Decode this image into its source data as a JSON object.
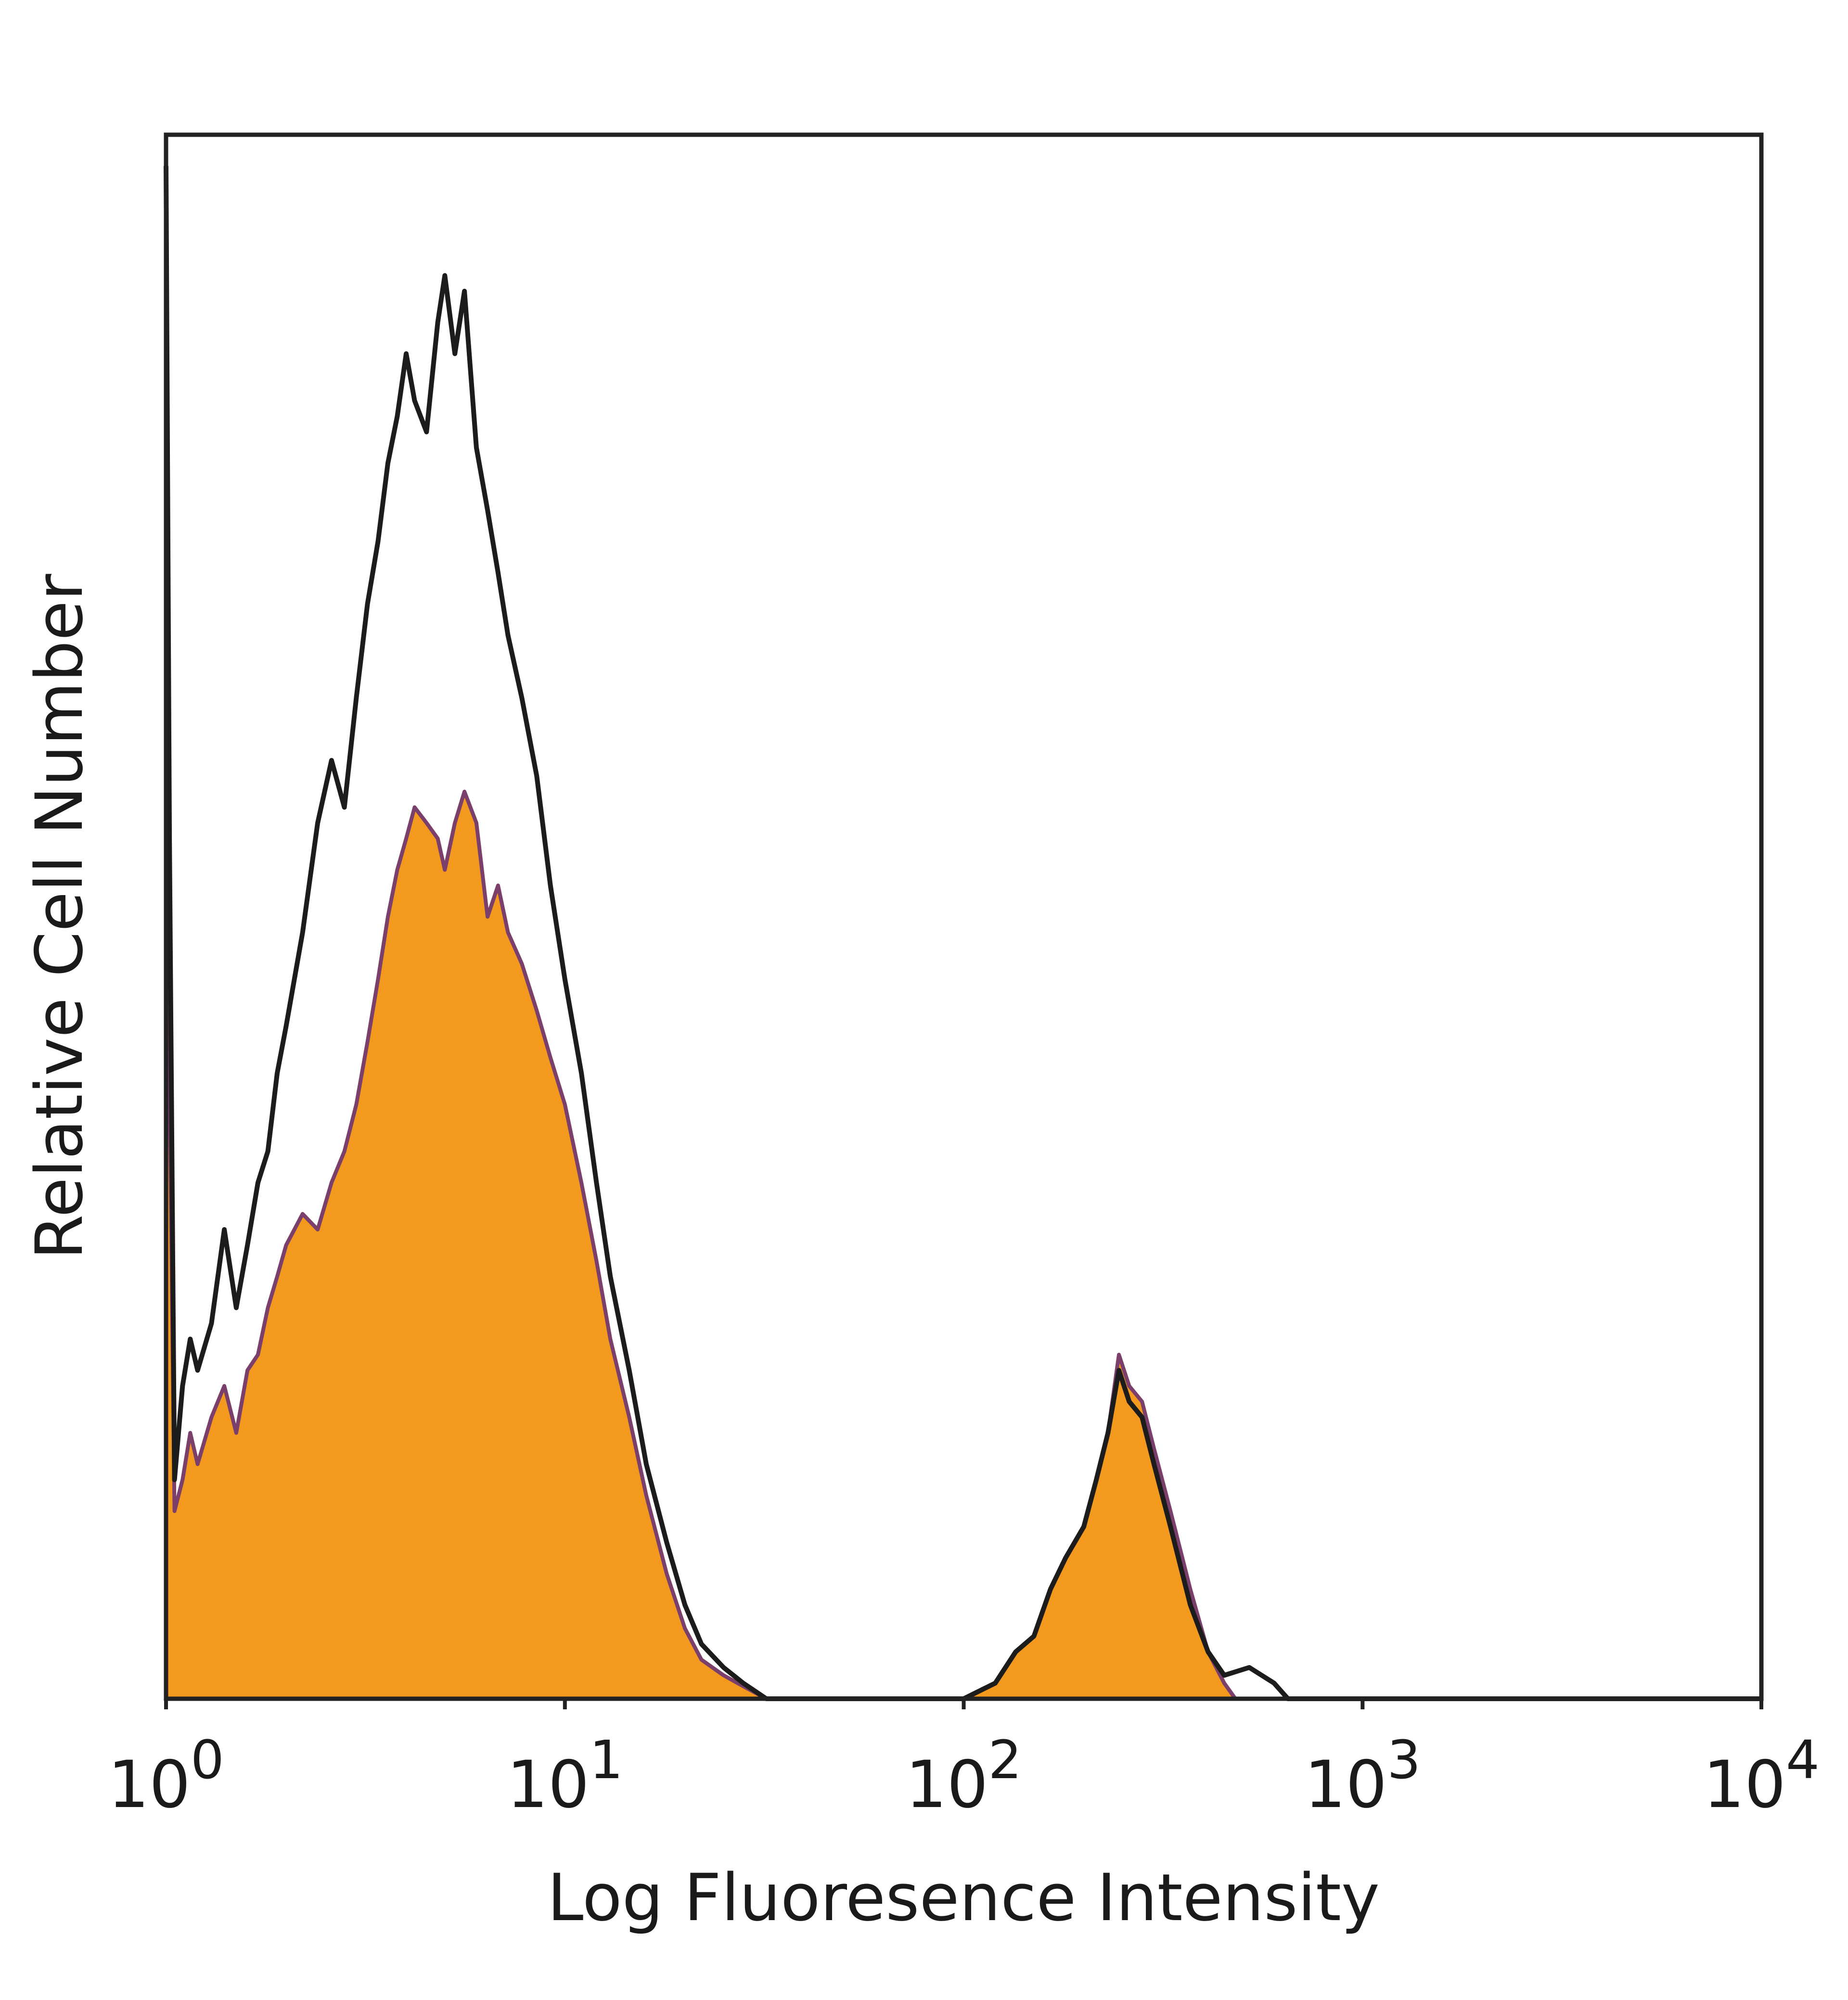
{
  "chart_data": {
    "type": "area",
    "title": "",
    "xlabel": "Log Fluoresence Intensity",
    "ylabel": "Relative Cell Number",
    "x_scale": "log",
    "xlim": [
      1,
      10000
    ],
    "ylim": [
      0,
      1
    ],
    "y_ticks_visible": false,
    "grid": false,
    "legend": "none",
    "x_ticks": [
      {
        "value": 1,
        "base": "10",
        "exp": "0"
      },
      {
        "value": 10,
        "base": "10",
        "exp": "1"
      },
      {
        "value": 100,
        "base": "10",
        "exp": "2"
      },
      {
        "value": 1000,
        "base": "10",
        "exp": "3"
      },
      {
        "value": 10000,
        "base": "10",
        "exp": "4"
      }
    ],
    "series": [
      {
        "style": "filled",
        "color": "#f39a1e",
        "outline": "#7b3f6b",
        "points": [
          [
            1.0,
            0.82
          ],
          [
            1.02,
            0.4
          ],
          [
            1.05,
            0.12
          ],
          [
            1.1,
            0.14
          ],
          [
            1.15,
            0.17
          ],
          [
            1.2,
            0.15
          ],
          [
            1.3,
            0.18
          ],
          [
            1.4,
            0.2
          ],
          [
            1.5,
            0.17
          ],
          [
            1.6,
            0.21
          ],
          [
            1.7,
            0.22
          ],
          [
            1.8,
            0.25
          ],
          [
            1.9,
            0.27
          ],
          [
            2.0,
            0.29
          ],
          [
            2.2,
            0.31
          ],
          [
            2.4,
            0.3
          ],
          [
            2.6,
            0.33
          ],
          [
            2.8,
            0.35
          ],
          [
            3.0,
            0.38
          ],
          [
            3.2,
            0.42
          ],
          [
            3.4,
            0.46
          ],
          [
            3.6,
            0.5
          ],
          [
            3.8,
            0.53
          ],
          [
            4.0,
            0.55
          ],
          [
            4.2,
            0.57
          ],
          [
            4.5,
            0.56
          ],
          [
            4.8,
            0.55
          ],
          [
            5.0,
            0.53
          ],
          [
            5.3,
            0.56
          ],
          [
            5.6,
            0.58
          ],
          [
            6.0,
            0.56
          ],
          [
            6.4,
            0.5
          ],
          [
            6.8,
            0.52
          ],
          [
            7.2,
            0.49
          ],
          [
            7.8,
            0.47
          ],
          [
            8.5,
            0.44
          ],
          [
            9.2,
            0.41
          ],
          [
            10.0,
            0.38
          ],
          [
            11.0,
            0.33
          ],
          [
            12.0,
            0.28
          ],
          [
            13.0,
            0.23
          ],
          [
            14.5,
            0.18
          ],
          [
            16.0,
            0.13
          ],
          [
            18.0,
            0.08
          ],
          [
            20.0,
            0.045
          ],
          [
            22.0,
            0.025
          ],
          [
            25.0,
            0.015
          ],
          [
            28.0,
            0.008
          ],
          [
            32.0,
            0.0
          ],
          [
            100.0,
            0.0
          ],
          [
            120.0,
            0.01
          ],
          [
            135.0,
            0.03
          ],
          [
            150.0,
            0.04
          ],
          [
            165.0,
            0.07
          ],
          [
            180.0,
            0.09
          ],
          [
            200.0,
            0.11
          ],
          [
            215.0,
            0.14
          ],
          [
            230.0,
            0.17
          ],
          [
            245.0,
            0.22
          ],
          [
            260.0,
            0.2
          ],
          [
            280.0,
            0.19
          ],
          [
            300.0,
            0.16
          ],
          [
            330.0,
            0.12
          ],
          [
            370.0,
            0.07
          ],
          [
            410.0,
            0.03
          ],
          [
            450.0,
            0.01
          ],
          [
            480.0,
            0.0
          ],
          [
            10000.0,
            0.0
          ]
        ]
      },
      {
        "style": "outline",
        "color": "#1c1c1c",
        "points": [
          [
            1.0,
            0.98
          ],
          [
            1.02,
            0.55
          ],
          [
            1.05,
            0.14
          ],
          [
            1.1,
            0.2
          ],
          [
            1.15,
            0.23
          ],
          [
            1.2,
            0.21
          ],
          [
            1.3,
            0.24
          ],
          [
            1.4,
            0.3
          ],
          [
            1.5,
            0.25
          ],
          [
            1.6,
            0.29
          ],
          [
            1.7,
            0.33
          ],
          [
            1.8,
            0.35
          ],
          [
            1.9,
            0.4
          ],
          [
            2.0,
            0.43
          ],
          [
            2.2,
            0.49
          ],
          [
            2.4,
            0.56
          ],
          [
            2.6,
            0.6
          ],
          [
            2.8,
            0.57
          ],
          [
            3.0,
            0.64
          ],
          [
            3.2,
            0.7
          ],
          [
            3.4,
            0.74
          ],
          [
            3.6,
            0.79
          ],
          [
            3.8,
            0.82
          ],
          [
            4.0,
            0.86
          ],
          [
            4.2,
            0.83
          ],
          [
            4.5,
            0.81
          ],
          [
            4.8,
            0.88
          ],
          [
            5.0,
            0.91
          ],
          [
            5.3,
            0.86
          ],
          [
            5.6,
            0.9
          ],
          [
            6.0,
            0.8
          ],
          [
            6.4,
            0.76
          ],
          [
            6.8,
            0.72
          ],
          [
            7.2,
            0.68
          ],
          [
            7.8,
            0.64
          ],
          [
            8.5,
            0.59
          ],
          [
            9.2,
            0.52
          ],
          [
            10.0,
            0.46
          ],
          [
            11.0,
            0.4
          ],
          [
            12.0,
            0.33
          ],
          [
            13.0,
            0.27
          ],
          [
            14.5,
            0.21
          ],
          [
            16.0,
            0.15
          ],
          [
            18.0,
            0.1
          ],
          [
            20.0,
            0.06
          ],
          [
            22.0,
            0.035
          ],
          [
            25.0,
            0.02
          ],
          [
            28.0,
            0.01
          ],
          [
            32.0,
            0.0
          ],
          [
            100.0,
            0.0
          ],
          [
            120.0,
            0.01
          ],
          [
            135.0,
            0.03
          ],
          [
            150.0,
            0.04
          ],
          [
            165.0,
            0.07
          ],
          [
            180.0,
            0.09
          ],
          [
            200.0,
            0.11
          ],
          [
            215.0,
            0.14
          ],
          [
            230.0,
            0.17
          ],
          [
            245.0,
            0.21
          ],
          [
            260.0,
            0.19
          ],
          [
            280.0,
            0.18
          ],
          [
            300.0,
            0.15
          ],
          [
            330.0,
            0.11
          ],
          [
            370.0,
            0.06
          ],
          [
            410.0,
            0.03
          ],
          [
            450.0,
            0.015
          ],
          [
            520.0,
            0.02
          ],
          [
            600.0,
            0.01
          ],
          [
            650.0,
            0.0
          ],
          [
            10000.0,
            0.0
          ]
        ]
      }
    ]
  }
}
